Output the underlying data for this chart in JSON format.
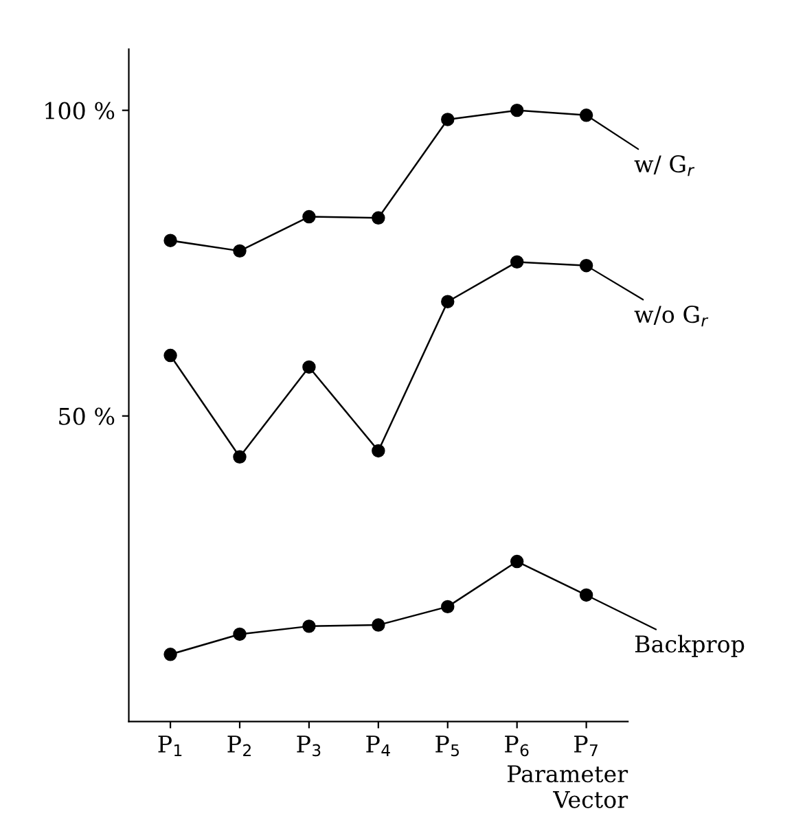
{
  "chart_data": {
    "type": "line",
    "xlabel": "Parameter\nVector",
    "categories": [
      "P$_{1}$",
      "P$_{2}$",
      "P$_{3}$",
      "P$_{4}$",
      "P$_{5}$",
      "P$_{6}$",
      "P$_{7}$"
    ],
    "series": [
      {
        "name": "w/ G$_{r}$",
        "color": "#000000",
        "values": [
          78.7,
          77,
          82.6,
          82.4,
          98.5,
          100,
          99.2
        ]
      },
      {
        "name": "w/o G$_{r}$",
        "color": "#000000",
        "values": [
          59.9,
          43.3,
          58,
          44.3,
          68.7,
          75.2,
          74.6
        ]
      },
      {
        "name": "Backprop",
        "color": "#000000",
        "values": [
          11,
          14.3,
          15.6,
          15.8,
          18.8,
          26.2,
          20.7
        ]
      }
    ],
    "ylim": [
      0,
      110
    ],
    "yticks": [
      {
        "value": 50,
        "label": "50 %"
      },
      {
        "value": 100,
        "label": "100 %"
      }
    ],
    "grid": false,
    "legend": "right",
    "marker": "circle",
    "line_style": "solid"
  }
}
